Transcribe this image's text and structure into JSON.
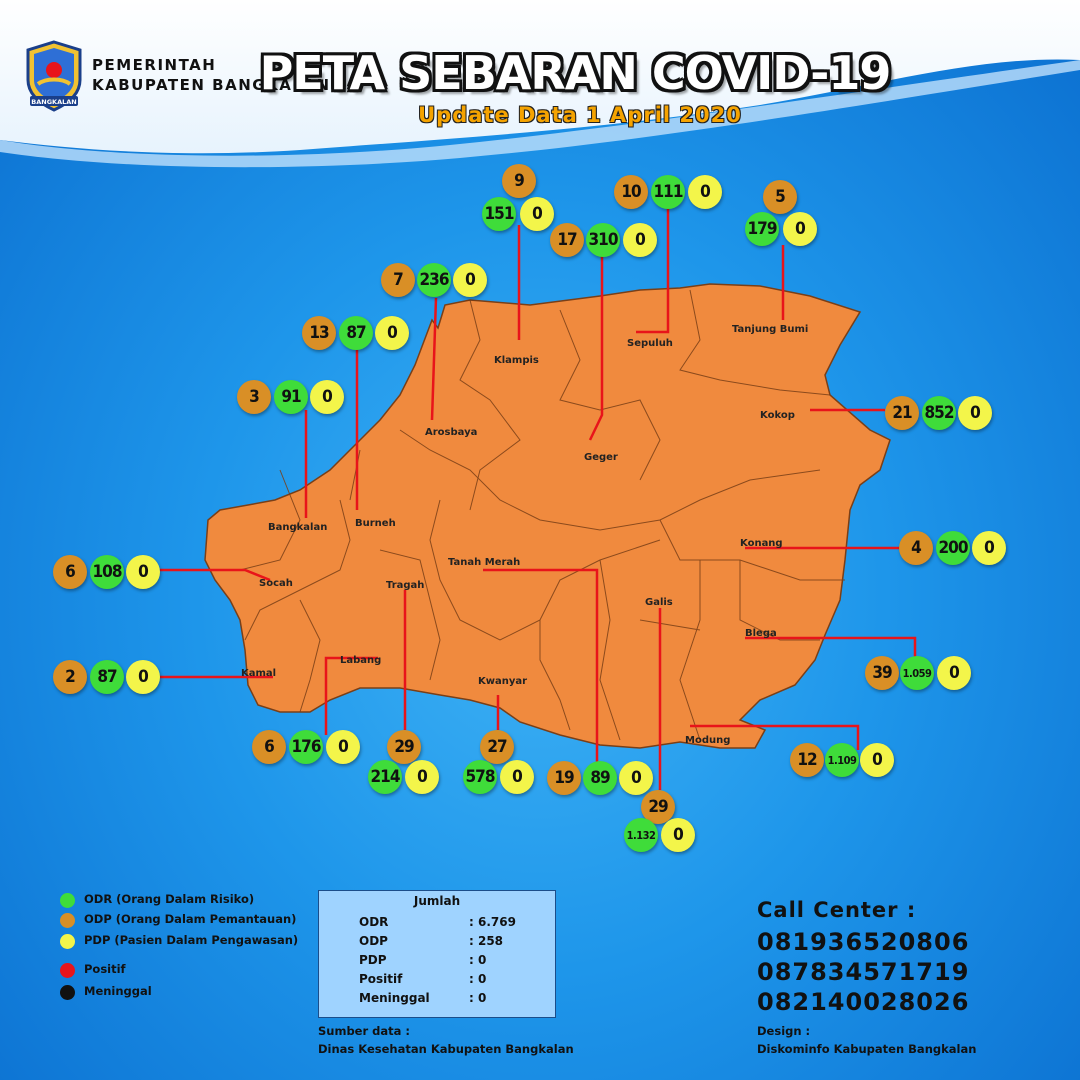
{
  "header": {
    "gov_line1": "PEMERINTAH",
    "gov_line2": "KABUPATEN BANGKALAN",
    "logo_ribbon": "BANGKALAN",
    "title": "PETA SEBARAN COVID-19",
    "subtitle": "Update Data 1 April 2020"
  },
  "districts": [
    {
      "name": "Klampis",
      "odp": "9",
      "odr": "151",
      "pdp": "0"
    },
    {
      "name": "Sepuluh",
      "odp": "10",
      "odr": "111",
      "pdp": "0"
    },
    {
      "name": "Tanjung Bumi",
      "odp": "5",
      "odr": "179",
      "pdp": "0"
    },
    {
      "name": "Geger",
      "odp": "17",
      "odr": "310",
      "pdp": "0"
    },
    {
      "name": "Arosbaya",
      "odp": "7",
      "odr": "236",
      "pdp": "0"
    },
    {
      "name": "Burneh",
      "odp": "13",
      "odr": "87",
      "pdp": "0"
    },
    {
      "name": "Bangkalan",
      "odp": "3",
      "odr": "91",
      "pdp": "0"
    },
    {
      "name": "Kokop",
      "odp": "21",
      "odr": "852",
      "pdp": "0"
    },
    {
      "name": "Konang",
      "odp": "4",
      "odr": "200",
      "pdp": "0"
    },
    {
      "name": "Socah",
      "odp": "6",
      "odr": "108",
      "pdp": "0"
    },
    {
      "name": "Blega",
      "odp": "39",
      "odr": "1.059",
      "pdp": "0"
    },
    {
      "name": "Kamal",
      "odp": "2",
      "odr": "87",
      "pdp": "0"
    },
    {
      "name": "Modung",
      "odp": "12",
      "odr": "1.109",
      "pdp": "0"
    },
    {
      "name": "Labang",
      "odp": "6",
      "odr": "176",
      "pdp": "0"
    },
    {
      "name": "Tragah",
      "odp": "29",
      "odr": "214",
      "pdp": "0"
    },
    {
      "name": "Kwanyar",
      "odp": "27",
      "odr": "578",
      "pdp": "0"
    },
    {
      "name": "Tanah Merah",
      "odp": "19",
      "odr": "89",
      "pdp": "0"
    },
    {
      "name": "Galis",
      "odp": "29",
      "odr": "1.132",
      "pdp": "0"
    }
  ],
  "legend": [
    {
      "label": "ODR (Orang Dalam Risiko)",
      "color": "#3fdc3a"
    },
    {
      "label": "ODP (Orang Dalam Pemantauan)",
      "color": "#d98f26"
    },
    {
      "label": "PDP (Pasien Dalam Pengawasan)",
      "color": "#f3f54a"
    },
    {
      "label": "Positif",
      "color": "#e8141a"
    },
    {
      "label": "Meninggal",
      "color": "#111111"
    }
  ],
  "summary": {
    "title": "Jumlah",
    "rows": [
      {
        "label": "ODR",
        "value": ": 6.769"
      },
      {
        "label": "ODP",
        "value": ": 258"
      },
      {
        "label": "PDP",
        "value": ": 0"
      },
      {
        "label": "Positif",
        "value": ": 0"
      },
      {
        "label": "Meninggal",
        "value": ": 0"
      }
    ]
  },
  "source": {
    "label": "Sumber data :",
    "value": "Dinas Kesehatan Kabupaten Bangkalan"
  },
  "call_center": {
    "title": "Call Center :",
    "numbers": [
      "081936520806",
      "087834571719",
      "082140028026"
    ]
  },
  "design": {
    "label": "Design :",
    "value": "Diskominfo Kabupaten Bangkalan"
  },
  "colors": {
    "map_fill": "#f08a3e",
    "leader_line": "#e8141a"
  }
}
